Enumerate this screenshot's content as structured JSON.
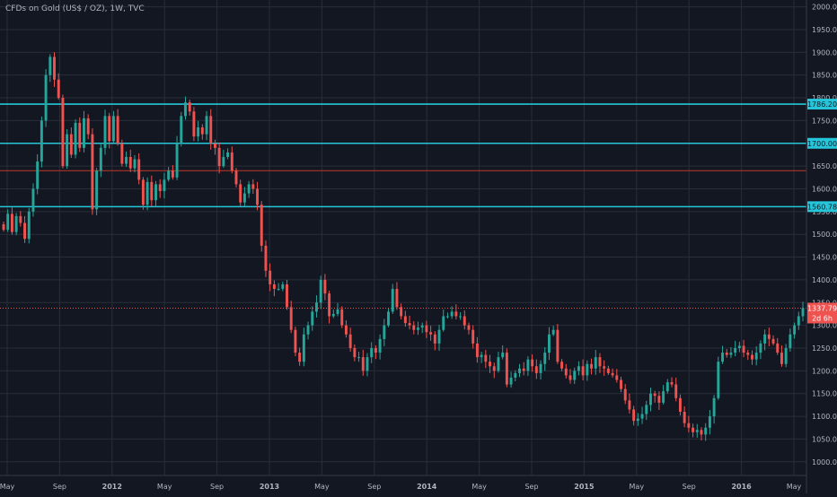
{
  "chart_data": {
    "type": "candlestick",
    "title": "CFDs on Gold (US$ / OZ), 1W, TVC",
    "ylim": [
      970,
      2015
    ],
    "y_ticks": [
      2000,
      1950,
      1900,
      1850,
      1800,
      1750,
      1700,
      1650,
      1600,
      1550,
      1500,
      1450,
      1400,
      1350,
      1300,
      1250,
      1200,
      1150,
      1100,
      1050,
      1000
    ],
    "x_ticks": [
      "May",
      "Sep",
      "2012",
      "May",
      "Sep",
      "2013",
      "May",
      "Sep",
      "2014",
      "May",
      "Sep",
      "2015",
      "May",
      "Sep",
      "2016",
      "May"
    ],
    "grid": true,
    "horizontal_levels": [
      {
        "label": "1786.20",
        "value": 1786.2,
        "color": "#26c6da"
      },
      {
        "label": "1700.00",
        "value": 1700.0,
        "color": "#26c6da"
      },
      {
        "label": "",
        "value": 1640,
        "color": "#c0392b"
      },
      {
        "label": "1560.78",
        "value": 1560.78,
        "color": "#26c6da"
      }
    ],
    "last_price": {
      "label": "1337.79",
      "value": 1337.79,
      "countdown": "2d 6h",
      "color": "#ef5350"
    },
    "colors": {
      "up": "#26a69a",
      "down": "#ef5350",
      "grid": "#2a2e39",
      "axis_text": "#b2b5be"
    },
    "path_closes": [
      1510,
      1545,
      1505,
      1540,
      1525,
      1490,
      1550,
      1600,
      1660,
      1750,
      1850,
      1890,
      1840,
      1800,
      1650,
      1720,
      1675,
      1745,
      1690,
      1755,
      1720,
      1555,
      1640,
      1690,
      1760,
      1705,
      1760,
      1700,
      1655,
      1670,
      1645,
      1665,
      1620,
      1565,
      1615,
      1575,
      1610,
      1595,
      1620,
      1640,
      1625,
      1700,
      1760,
      1790,
      1770,
      1715,
      1735,
      1720,
      1760,
      1700,
      1690,
      1650,
      1670,
      1680,
      1640,
      1610,
      1570,
      1590,
      1610,
      1600,
      1565,
      1475,
      1420,
      1390,
      1380,
      1380,
      1390,
      1340,
      1290,
      1240,
      1220,
      1280,
      1300,
      1330,
      1350,
      1400,
      1370,
      1320,
      1325,
      1335,
      1300,
      1280,
      1250,
      1230,
      1230,
      1200,
      1230,
      1250,
      1240,
      1270,
      1300,
      1330,
      1380,
      1340,
      1320,
      1305,
      1300,
      1290,
      1295,
      1300,
      1285,
      1280,
      1260,
      1290,
      1320,
      1320,
      1330,
      1320,
      1320,
      1300,
      1290,
      1260,
      1230,
      1235,
      1220,
      1210,
      1200,
      1230,
      1240,
      1170,
      1185,
      1195,
      1205,
      1200,
      1225,
      1210,
      1195,
      1215,
      1240,
      1280,
      1290,
      1220,
      1205,
      1190,
      1180,
      1200,
      1210,
      1190,
      1215,
      1205,
      1230,
      1210,
      1205,
      1195,
      1190,
      1180,
      1160,
      1135,
      1115,
      1090,
      1095,
      1105,
      1125,
      1150,
      1145,
      1130,
      1155,
      1175,
      1170,
      1140,
      1110,
      1085,
      1075,
      1065,
      1070,
      1060,
      1075,
      1100,
      1140,
      1220,
      1240,
      1235,
      1240,
      1250,
      1255,
      1240,
      1235,
      1225,
      1240,
      1260,
      1280,
      1270,
      1260,
      1240,
      1215,
      1250,
      1280,
      1300,
      1320,
      1337.79
    ]
  }
}
